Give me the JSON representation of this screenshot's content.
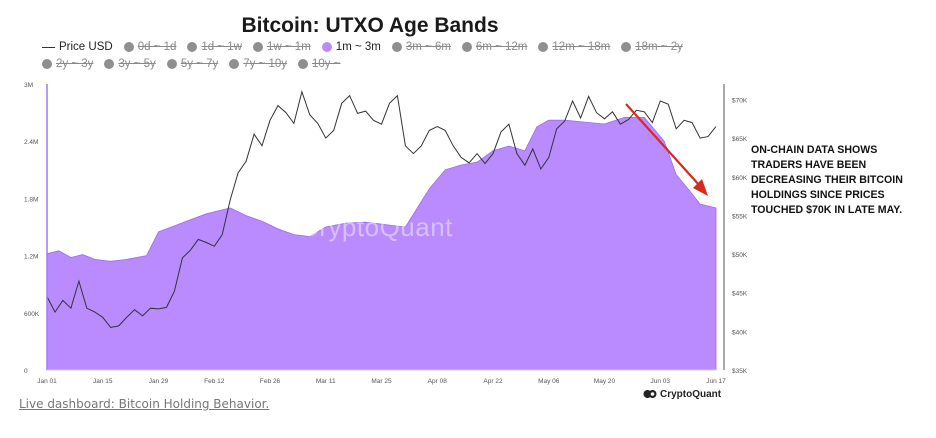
{
  "chart_data": {
    "type": "area",
    "title": "Bitcoin: UTXO Age Bands",
    "legend": [
      {
        "label": "Price USD",
        "style": "line",
        "active": true
      },
      {
        "label": "0d ~ 1d",
        "active": false
      },
      {
        "label": "1d ~ 1w",
        "active": false
      },
      {
        "label": "1w ~ 1m",
        "active": false
      },
      {
        "label": "1m ~ 3m",
        "active": true,
        "color": "#b98bff"
      },
      {
        "label": "3m ~ 6m",
        "active": false
      },
      {
        "label": "6m ~ 12m",
        "active": false
      },
      {
        "label": "12m ~ 18m",
        "active": false
      },
      {
        "label": "18m ~ 2y",
        "active": false
      },
      {
        "label": "2y ~ 3y",
        "active": false
      },
      {
        "label": "3y ~ 5y",
        "active": false
      },
      {
        "label": "5y ~ 7y",
        "active": false
      },
      {
        "label": "7y ~ 10y",
        "active": false
      },
      {
        "label": "10y ~",
        "active": false
      }
    ],
    "x_ticks": [
      "Jan 01",
      "Jan 15",
      "Jan 29",
      "Feb 12",
      "Feb 26",
      "Mar 11",
      "Mar 25",
      "Apr 08",
      "Apr 22",
      "May 06",
      "May 20",
      "Jun 03",
      "Jun 17"
    ],
    "y_left": {
      "ticks": [
        "3M",
        "2.4M",
        "1.8M",
        "1.2M",
        "600K",
        "0"
      ],
      "values": [
        3000000,
        2400000,
        1800000,
        1200000,
        600000,
        0
      ],
      "ylim": [
        0,
        3000000
      ]
    },
    "y_right": {
      "ticks": [
        "$70K",
        "$65K",
        "$60K",
        "$55K",
        "$50K",
        "$45K",
        "$40K",
        "$35K"
      ],
      "values": [
        70000,
        65000,
        60000,
        55000,
        50000,
        45000,
        40000,
        35000
      ],
      "ylim": [
        35000,
        72000
      ]
    },
    "series": [
      {
        "name": "1m ~ 3m",
        "axis": "left",
        "color": "#b98bff",
        "x": [
          0,
          3,
          6,
          9,
          12,
          16,
          20,
          25,
          28,
          30,
          35,
          40,
          46,
          50,
          54,
          58,
          62,
          66,
          70,
          75,
          80,
          86,
          90,
          96,
          100,
          104,
          108,
          112,
          116,
          120,
          123,
          126,
          130,
          135,
          140,
          145,
          150,
          155,
          158,
          161,
          164,
          168
        ],
        "values": [
          1220000,
          1250000,
          1180000,
          1210000,
          1160000,
          1140000,
          1160000,
          1200000,
          1450000,
          1480000,
          1560000,
          1640000,
          1700000,
          1620000,
          1560000,
          1480000,
          1420000,
          1400000,
          1500000,
          1540000,
          1550000,
          1520000,
          1500000,
          1900000,
          2100000,
          2150000,
          2180000,
          2300000,
          2350000,
          2300000,
          2550000,
          2620000,
          2620000,
          2600000,
          2580000,
          2650000,
          2650000,
          2400000,
          2050000,
          1900000,
          1740000,
          1700000
        ]
      },
      {
        "name": "Price USD",
        "axis": "right",
        "color": "#333333",
        "x": [
          0,
          2,
          4,
          6,
          8,
          10,
          12,
          14,
          16,
          18,
          20,
          22,
          24,
          26,
          28,
          30,
          32,
          34,
          36,
          38,
          40,
          42,
          44,
          46,
          48,
          50,
          52,
          54,
          56,
          58,
          60,
          62,
          64,
          66,
          68,
          70,
          72,
          74,
          76,
          78,
          80,
          82,
          84,
          86,
          88,
          90,
          92,
          94,
          96,
          98,
          100,
          102,
          104,
          106,
          108,
          110,
          112,
          114,
          116,
          118,
          120,
          122,
          124,
          126,
          128,
          130,
          132,
          134,
          136,
          138,
          140,
          142,
          144,
          146,
          148,
          150,
          152,
          154,
          156,
          158,
          160,
          162,
          164,
          166,
          168
        ],
        "values": [
          44500,
          42500,
          44000,
          43000,
          46500,
          43000,
          42500,
          41800,
          40500,
          40700,
          41800,
          42800,
          42000,
          43000,
          42900,
          43100,
          45200,
          49500,
          50500,
          51900,
          51500,
          51000,
          52500,
          57000,
          60500,
          62000,
          65500,
          64000,
          67300,
          69200,
          68300,
          66900,
          71000,
          68000,
          66900,
          65000,
          66000,
          69500,
          70500,
          68200,
          68500,
          67300,
          66800,
          69500,
          70500,
          64000,
          63000,
          64000,
          66000,
          66500,
          66000,
          64000,
          62500,
          61800,
          63000,
          61700,
          63000,
          65800,
          66800,
          63000,
          61500,
          63600,
          61000,
          62500,
          66200,
          67200,
          69800,
          67600,
          70400,
          68300,
          67500,
          68400,
          66800,
          67400,
          68600,
          68400,
          67000,
          69800,
          69400,
          66200,
          67300,
          67000,
          65000,
          65200,
          66500
        ]
      }
    ],
    "annotation": "ON-CHAIN DATA SHOWS TRADERS HAVE BEEN DECREASING THEIR BITCOIN HOLDINGS SINCE PRICES TOUCHED $70K IN LATE MAY.",
    "arrow_color": "#d62a1e",
    "watermark": "CryptoQuant"
  },
  "footer": {
    "link_text": "Live dashboard: Bitcoin Holding Behavior.",
    "brand": "CryptoQuant"
  }
}
